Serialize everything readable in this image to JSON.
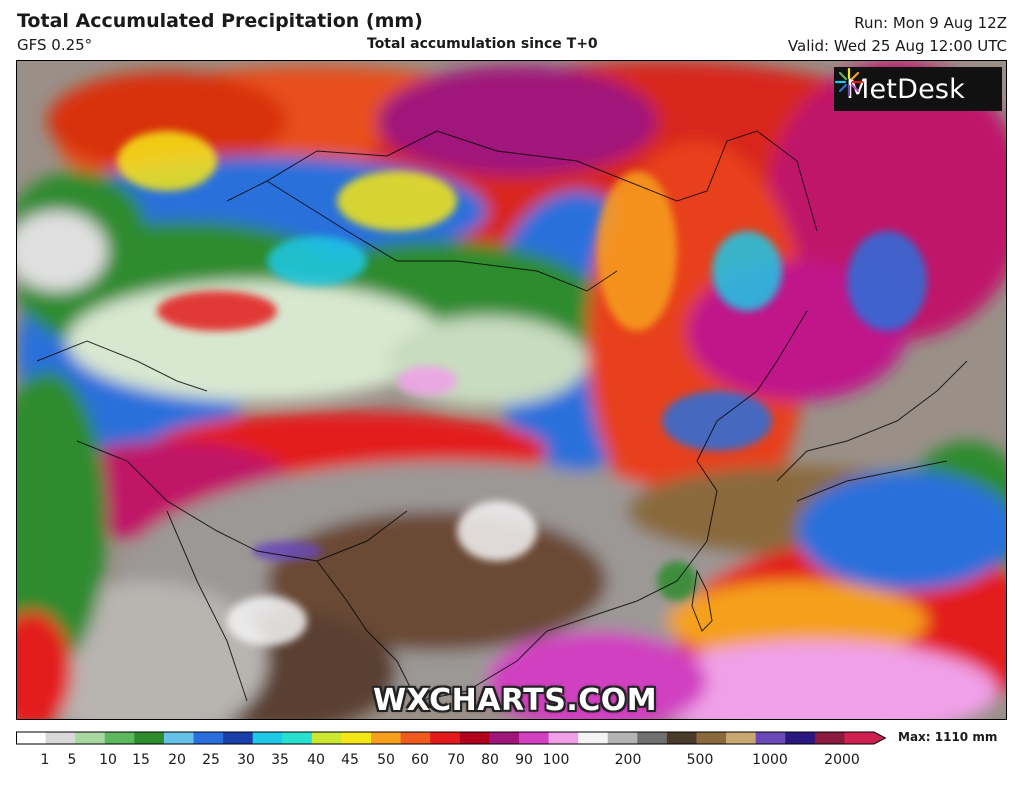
{
  "header": {
    "title": "Total Accumulated Precipitation (mm)",
    "model": "GFS 0.25°",
    "subtitle": "Total accumulation since T+0",
    "run": "Run: Mon 9 Aug 12Z",
    "valid": "Valid: Wed 25 Aug 12:00 UTC"
  },
  "map": {
    "logo": "MetDesk",
    "watermark": "WXCHARTS.COM"
  },
  "legend": {
    "max_label": "Max: 1110 mm",
    "ticks": [
      "1",
      "5",
      "10",
      "15",
      "20",
      "25",
      "30",
      "35",
      "40",
      "45",
      "50",
      "60",
      "70",
      "80",
      "90",
      "100",
      "200",
      "500",
      "1000",
      "2000"
    ],
    "colors": [
      "#ffffff",
      "#d8d8d8",
      "#a8d8a0",
      "#5cb85c",
      "#2e8b2e",
      "#66c2e8",
      "#2a6fdb",
      "#1a3fa8",
      "#1ec8e6",
      "#28e0d0",
      "#cde832",
      "#f5e618",
      "#f6a01e",
      "#f05a1e",
      "#e31a1c",
      "#b0001e",
      "#a0157a",
      "#d040c0",
      "#f0a0e8",
      "#f4f4f4",
      "#b4b4b4",
      "#707070",
      "#4a3a2c",
      "#8a6a3c",
      "#c8a870",
      "#6a4ab8",
      "#2a1880",
      "#8a1a40",
      "#d02050"
    ]
  }
}
